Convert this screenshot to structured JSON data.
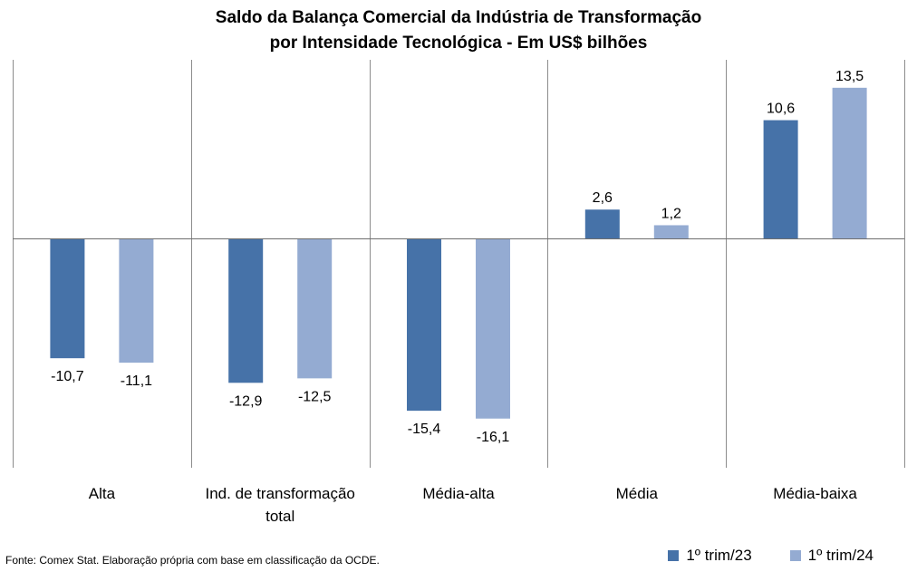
{
  "chart_data": {
    "type": "bar",
    "title": "Saldo da Balança Comercial da Indústria de Transformação",
    "subtitle": "por Intensidade Tecnológica - Em US$ bilhões",
    "categories": [
      [
        "Alta"
      ],
      [
        "Ind. de transformação",
        "total"
      ],
      [
        "Média-alta"
      ],
      [
        "Média"
      ],
      [
        "Média-baixa"
      ]
    ],
    "series": [
      {
        "name": "1º trim/23",
        "color": "#4672a8",
        "values": [
          -10.7,
          -12.9,
          -15.4,
          2.6,
          10.6
        ],
        "labels": [
          "-10,7",
          "-12,9",
          "-15,4",
          "2,6",
          "10,6"
        ]
      },
      {
        "name": "1º trim/24",
        "color": "#94abd2",
        "values": [
          -11.1,
          -12.5,
          -16.1,
          1.2,
          13.5
        ],
        "labels": [
          "-11,1",
          "-12,5",
          "-16,1",
          "1,2",
          "13,5"
        ]
      }
    ],
    "ylim": [
      -20.5,
      16
    ],
    "grid": "vertical separators between categories",
    "legend_position": "bottom-right"
  },
  "footer": {
    "source": "Fonte: Comex Stat. Elaboração própria com base em classificação da OCDE."
  }
}
